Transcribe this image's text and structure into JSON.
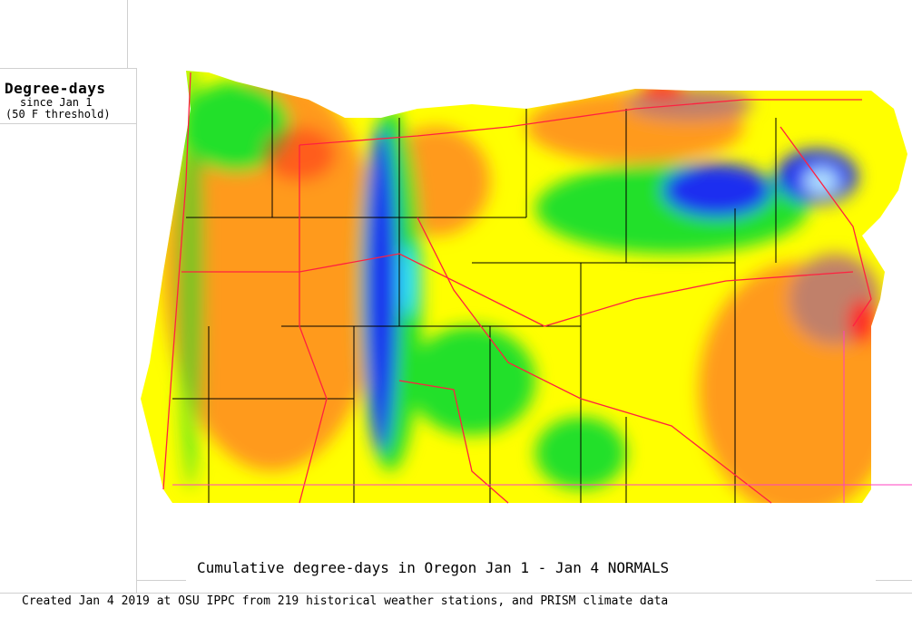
{
  "legend": {
    "title": "Degree-days",
    "subtitle": "since Jan 1",
    "threshold": "(50 F threshold)"
  },
  "map": {
    "title": "Cumulative degree-days in Oregon  Jan 1 - Jan 4 NORMALS",
    "region": "Oregon",
    "colors": {
      "low_blue": "#1e2ff0",
      "cyan": "#30e0ff",
      "green": "#22e02a",
      "yellow": "#ffff00",
      "orange": "#ff9a1a",
      "red": "#ff2020",
      "brown": "#c0806a",
      "roads": "#ff2040",
      "boundaries": "#000000"
    }
  },
  "credit": "Created Jan 4 2019 at OSU IPPC from 219 historical weather stations, and PRISM climate data"
}
